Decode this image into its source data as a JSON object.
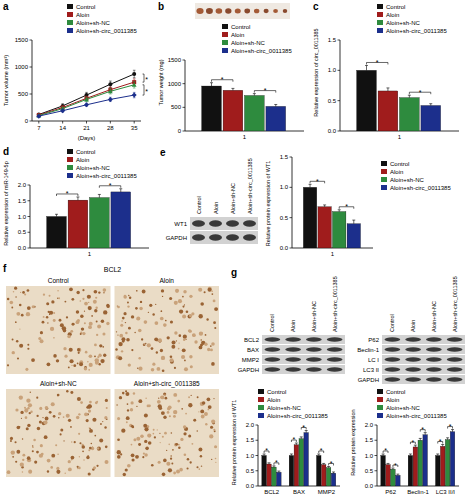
{
  "panel_labels": [
    "a",
    "b",
    "c",
    "d",
    "e",
    "f",
    "g"
  ],
  "chart_data": [
    {
      "type": "line",
      "y_label": "Tumor volume (mm³)",
      "x_label": "(Days)",
      "x": [
        7,
        14,
        21,
        28,
        35
      ],
      "xlim": [
        5,
        37
      ],
      "xticks": [
        7,
        14,
        21,
        28,
        35
      ],
      "ylim": [
        0,
        1500
      ],
      "yticks": [
        0,
        500,
        1000,
        1500
      ],
      "legend": "upper right",
      "series": [
        {
          "name": "Control",
          "color": "#111111",
          "marker": "circle",
          "values": [
            120,
            280,
            480,
            680,
            870
          ],
          "errors": [
            20,
            40,
            50,
            60,
            70
          ]
        },
        {
          "name": "Aloin",
          "color": "#a01c1c",
          "marker": "square",
          "values": [
            110,
            250,
            420,
            580,
            720
          ],
          "errors": [
            20,
            30,
            40,
            50,
            60
          ]
        },
        {
          "name": "Aloin+sh-NC",
          "color": "#2e8b3e",
          "marker": "triangle",
          "values": [
            100,
            230,
            400,
            550,
            670
          ],
          "errors": [
            20,
            30,
            40,
            50,
            60
          ]
        },
        {
          "name": "Aloin+sh-circ_0011385",
          "color": "#1c2f8c",
          "marker": "diamond",
          "values": [
            90,
            190,
            300,
            400,
            480
          ],
          "errors": [
            15,
            25,
            30,
            40,
            50
          ]
        }
      ],
      "significance": [
        {
          "label": "*",
          "between": [
            0,
            1
          ]
        },
        {
          "label": "*",
          "between": [
            2,
            3
          ]
        }
      ]
    },
    {
      "type": "bar",
      "y_label": "Tumor weight (mg)",
      "categories": [
        "1"
      ],
      "ylim": [
        0,
        1500
      ],
      "yticks": [
        0,
        500,
        1000,
        1500
      ],
      "legend": "upper right",
      "series": [
        {
          "name": "Control",
          "color": "#111111",
          "values": [
            950
          ],
          "errors": [
            70
          ]
        },
        {
          "name": "Aloin",
          "color": "#a01c1c",
          "values": [
            860
          ],
          "errors": [
            40
          ]
        },
        {
          "name": "Aloin+sh-NC",
          "color": "#2e8b3e",
          "values": [
            750
          ],
          "errors": [
            40
          ]
        },
        {
          "name": "Aloin+sh-circ_0011385",
          "color": "#1c2f8c",
          "values": [
            520
          ],
          "errors": [
            40
          ]
        }
      ],
      "significance": [
        {
          "label": "*",
          "between": [
            0,
            1
          ]
        },
        {
          "label": "*",
          "between": [
            2,
            3
          ]
        }
      ]
    },
    {
      "type": "bar",
      "y_label": "Relative expression of circ_0011385",
      "categories": [
        "1"
      ],
      "ylim": [
        0,
        1.5
      ],
      "yticks": [
        {
          "value": 0,
          "label": "0.0"
        },
        0.5,
        {
          "value": 1,
          "label": "1.0"
        },
        1.5
      ],
      "legend": "upper right",
      "series": [
        {
          "name": "Control",
          "color": "#111111",
          "values": [
            1.0
          ],
          "errors": [
            0.08
          ]
        },
        {
          "name": "Aloin",
          "color": "#a01c1c",
          "values": [
            0.66
          ],
          "errors": [
            0.05
          ]
        },
        {
          "name": "Aloin+sh-NC",
          "color": "#2e8b3e",
          "values": [
            0.55
          ],
          "errors": [
            0.04
          ]
        },
        {
          "name": "Aloin+sh-circ_0011385",
          "color": "#1c2f8c",
          "values": [
            0.42
          ],
          "errors": [
            0.03
          ]
        }
      ],
      "significance": [
        {
          "label": "*",
          "between": [
            0,
            1
          ]
        },
        {
          "label": "*",
          "between": [
            2,
            3
          ]
        }
      ]
    },
    {
      "type": "bar",
      "y_label": "Relative expression of miR-149-5p",
      "categories": [
        "1"
      ],
      "ylim": [
        0,
        2
      ],
      "yticks": [
        {
          "value": 0,
          "label": "0.0"
        },
        0.5,
        {
          "value": 1,
          "label": "1.0"
        },
        1.5,
        {
          "value": 2,
          "label": "2.0"
        }
      ],
      "legend": "upper right",
      "series": [
        {
          "name": "Control",
          "color": "#111111",
          "values": [
            1.0
          ],
          "errors": [
            0.07
          ]
        },
        {
          "name": "Aloin",
          "color": "#a01c1c",
          "values": [
            1.52
          ],
          "errors": [
            0.1
          ]
        },
        {
          "name": "Aloin+sh-NC",
          "color": "#2e8b3e",
          "values": [
            1.6
          ],
          "errors": [
            0.1
          ]
        },
        {
          "name": "Aloin+sh-circ_0011385",
          "color": "#1c2f8c",
          "values": [
            1.78
          ],
          "errors": [
            0.1
          ]
        }
      ],
      "significance": [
        {
          "label": "*",
          "between": [
            0,
            1
          ]
        },
        {
          "label": "*",
          "between": [
            2,
            3
          ]
        }
      ]
    },
    {
      "type": "bar",
      "y_label": "Relative protein expression of WT1",
      "categories": [
        "1"
      ],
      "ylim": [
        0,
        1.5
      ],
      "yticks": [
        {
          "value": 0,
          "label": "0.0"
        },
        0.5,
        {
          "value": 1,
          "label": "1.0"
        },
        1.5
      ],
      "legend": "right",
      "series": [
        {
          "name": "Control",
          "color": "#111111",
          "values": [
            1.0
          ],
          "errors": [
            0.05
          ]
        },
        {
          "name": "Aloin",
          "color": "#a01c1c",
          "values": [
            0.68
          ],
          "errors": [
            0.03
          ]
        },
        {
          "name": "Aloin+sh-NC",
          "color": "#2e8b3e",
          "values": [
            0.6
          ],
          "errors": [
            0.03
          ]
        },
        {
          "name": "Aloin+sh-circ_0011385",
          "color": "#1c2f8c",
          "values": [
            0.4
          ],
          "errors": [
            0.06
          ]
        }
      ],
      "significance": [
        {
          "label": "*",
          "between": [
            0,
            1
          ]
        },
        {
          "label": "*",
          "between": [
            2,
            3
          ]
        }
      ]
    },
    {
      "type": "bar",
      "y_label": "Relative protein expression of WT1",
      "categories": [
        "BCL2",
        "BAX",
        "MMP2"
      ],
      "ylim": [
        0,
        2
      ],
      "yticks": [
        {
          "value": 0,
          "label": "0.0"
        },
        0.5,
        {
          "value": 1,
          "label": "1.0"
        },
        1.5,
        {
          "value": 2,
          "label": "2.0"
        }
      ],
      "legend": "upper right",
      "series": [
        {
          "name": "Control",
          "color": "#111111",
          "values": [
            1.0,
            1.0,
            1.0
          ],
          "errors": [
            0.05,
            0.05,
            0.05
          ]
        },
        {
          "name": "Aloin",
          "color": "#a01c1c",
          "values": [
            0.72,
            1.35,
            0.7
          ],
          "errors": [
            0.04,
            0.06,
            0.04
          ]
        },
        {
          "name": "Aloin+sh-NC",
          "color": "#2e8b3e",
          "values": [
            0.62,
            1.55,
            0.6
          ],
          "errors": [
            0.04,
            0.06,
            0.04
          ]
        },
        {
          "name": "Aloin+sh-circ_0011385",
          "color": "#1c2f8c",
          "values": [
            0.45,
            1.75,
            0.42
          ],
          "errors": [
            0.04,
            0.07,
            0.04
          ]
        }
      ],
      "significance": [
        {
          "label": "*",
          "category": 0,
          "between": [
            0,
            1
          ]
        },
        {
          "label": "*",
          "category": 0,
          "between": [
            2,
            3
          ]
        },
        {
          "label": "*",
          "category": 1,
          "between": [
            0,
            1
          ]
        },
        {
          "label": "*",
          "category": 1,
          "between": [
            2,
            3
          ]
        },
        {
          "label": "*",
          "category": 2,
          "between": [
            0,
            1
          ]
        },
        {
          "label": "*",
          "category": 2,
          "between": [
            2,
            3
          ]
        }
      ]
    },
    {
      "type": "bar",
      "y_label": "Relative protein expression",
      "categories": [
        "P62",
        "Beclin-1",
        "LC3 II/I"
      ],
      "ylim": [
        0,
        2
      ],
      "yticks": [
        {
          "value": 0,
          "label": "0.0"
        },
        0.5,
        {
          "value": 1,
          "label": "1.0"
        },
        1.5,
        {
          "value": 2,
          "label": "2.0"
        }
      ],
      "legend": "upper right",
      "series": [
        {
          "name": "Control",
          "color": "#111111",
          "values": [
            1.0,
            1.0,
            1.0
          ],
          "errors": [
            0.05,
            0.05,
            0.05
          ]
        },
        {
          "name": "Aloin",
          "color": "#a01c1c",
          "values": [
            0.7,
            1.28,
            1.3
          ],
          "errors": [
            0.04,
            0.06,
            0.06
          ]
        },
        {
          "name": "Aloin+sh-NC",
          "color": "#2e8b3e",
          "values": [
            0.55,
            1.5,
            1.52
          ],
          "errors": [
            0.04,
            0.06,
            0.06
          ]
        },
        {
          "name": "Aloin+sh-circ_0011385",
          "color": "#1c2f8c",
          "values": [
            0.35,
            1.68,
            1.78
          ],
          "errors": [
            0.04,
            0.07,
            0.07
          ]
        }
      ],
      "significance": [
        {
          "label": "*",
          "category": 0,
          "between": [
            0,
            1
          ]
        },
        {
          "label": "*",
          "category": 0,
          "between": [
            2,
            3
          ]
        },
        {
          "label": "*",
          "category": 1,
          "between": [
            0,
            1
          ]
        },
        {
          "label": "*",
          "category": 1,
          "between": [
            2,
            3
          ]
        },
        {
          "label": "*",
          "category": 2,
          "between": [
            0,
            1
          ]
        },
        {
          "label": "*",
          "category": 2,
          "between": [
            2,
            3
          ]
        }
      ]
    }
  ],
  "blots": {
    "e": {
      "lanes": [
        "Control",
        "Aloin",
        "Aloin+sh-NC",
        "Aloin+sh-circ_0011385"
      ],
      "rows": [
        "WT1",
        "GAPDH"
      ]
    },
    "g_left": {
      "lanes": [
        "Control",
        "Aloin",
        "Aloin+sh-NC",
        "Aloin+sh-circ_0011385"
      ],
      "rows": [
        "BCL2",
        "BAX",
        "MMP2",
        "GAPDH"
      ]
    },
    "g_right": {
      "lanes": [
        "Control",
        "Aloin",
        "Aloin+sh-NC",
        "Aloin+sh-circ_0011385"
      ],
      "rows": [
        "P62",
        "Beclin-1",
        "LC I",
        "LC3 II",
        "GAPDH"
      ]
    }
  },
  "ihc": {
    "title": "BCL2",
    "panels": [
      "Control",
      "Aloin",
      "Aloin+sh-NC",
      "Aloin+sh-circ_0011385"
    ]
  }
}
